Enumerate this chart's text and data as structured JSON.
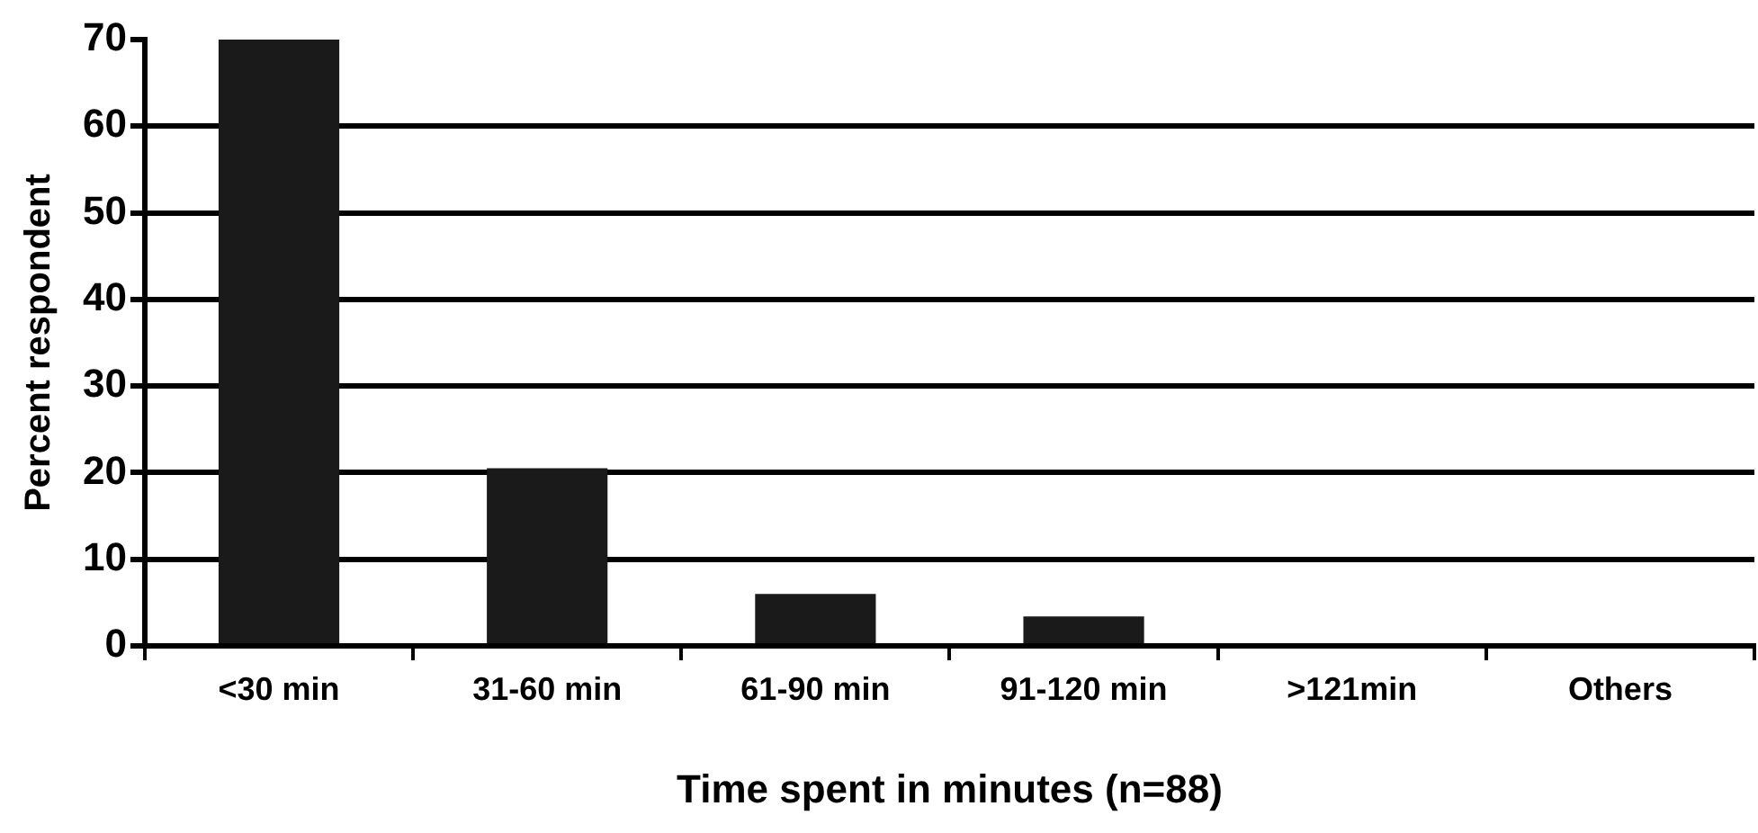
{
  "chart_data": {
    "type": "bar",
    "xlabel": "Time spent in minutes (n=88)",
    "ylabel": "Percent respondent",
    "categories": [
      "<30 min",
      "31-60 min",
      "61-90 min",
      "91-120 min",
      ">121min",
      "Others"
    ],
    "values": [
      70,
      20.5,
      6,
      3.4,
      0,
      0
    ],
    "color": "#1a1a1a",
    "ylim": [
      0,
      70
    ],
    "yticks": [
      0,
      10,
      20,
      30,
      40,
      50,
      60,
      70
    ],
    "grid": "y",
    "legend": false
  }
}
